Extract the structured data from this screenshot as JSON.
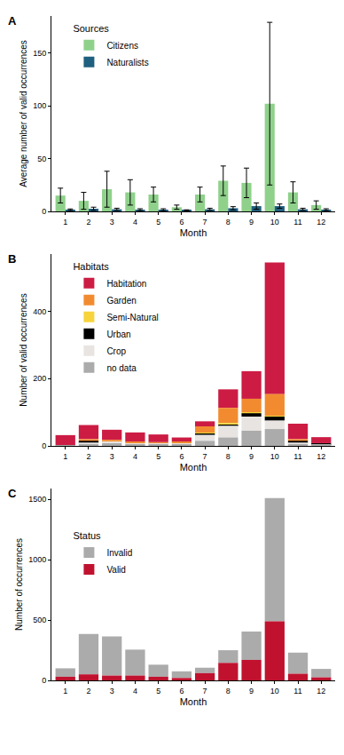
{
  "chart_data": [
    {
      "type": "bar",
      "title": "A",
      "xlabel": "Month",
      "ylabel": "Average number of valid occurrences",
      "x": [
        1,
        2,
        3,
        4,
        5,
        6,
        7,
        8,
        9,
        10,
        11,
        12
      ],
      "xlim": [
        0.4,
        12.6
      ],
      "xticks": [
        1,
        2,
        3,
        4,
        5,
        6,
        7,
        8,
        9,
        10,
        11,
        12
      ],
      "ylim": [
        0,
        185
      ],
      "yticks": [
        0,
        50,
        100,
        150
      ],
      "legend_title": "Sources",
      "legend": "top-left",
      "series": [
        {
          "name": "Citizens",
          "color": "#8fd18b",
          "values": [
            15,
            10,
            21,
            18,
            16,
            4,
            16,
            29,
            27,
            102,
            18,
            6
          ],
          "error": [
            7,
            8,
            17,
            12,
            7,
            2,
            7,
            14,
            14,
            77,
            10,
            4
          ]
        },
        {
          "name": "Naturalists",
          "color": "#1f5f7f",
          "values": [
            1.5,
            2.5,
            2,
            1.5,
            1.5,
            1,
            2,
            3,
            5,
            5,
            2,
            1.5
          ],
          "error": [
            0.8,
            1.5,
            1,
            1,
            1,
            0.5,
            1,
            1.5,
            3,
            2,
            1,
            1
          ]
        }
      ]
    },
    {
      "type": "bar",
      "title": "B",
      "xlabel": "Month",
      "ylabel": "Number of valid occurrences",
      "x": [
        1,
        2,
        3,
        4,
        5,
        6,
        7,
        8,
        9,
        10,
        11,
        12
      ],
      "xlim": [
        0.4,
        12.6
      ],
      "xticks": [
        1,
        2,
        3,
        4,
        5,
        6,
        7,
        8,
        9,
        10,
        11,
        12
      ],
      "ylim": [
        0,
        570
      ],
      "yticks": [
        0,
        200,
        400
      ],
      "stacked": true,
      "legend_title": "Habitats",
      "legend": "top-left",
      "series": [
        {
          "name": "Habitation",
          "color": "#cc1c44",
          "values": [
            30,
            42,
            30,
            27,
            23,
            12,
            15,
            55,
            82,
            391,
            46,
            18
          ]
        },
        {
          "name": "Garden",
          "color": "#f28b30",
          "values": [
            0,
            5,
            5,
            5,
            5,
            5,
            20,
            45,
            40,
            65,
            5,
            0
          ]
        },
        {
          "name": "Semi-Natural",
          "color": "#f7d43b",
          "values": [
            0,
            0,
            0,
            0,
            0,
            0,
            3,
            5,
            3,
            2,
            0,
            0
          ]
        },
        {
          "name": "Urban",
          "color": "#000000",
          "values": [
            0,
            5,
            0,
            0,
            0,
            0,
            2,
            3,
            10,
            12,
            5,
            3
          ]
        },
        {
          "name": "Crop",
          "color": "#e8e4e1",
          "values": [
            0,
            5,
            5,
            3,
            3,
            5,
            18,
            35,
            42,
            25,
            5,
            0
          ]
        },
        {
          "name": "no data",
          "color": "#ababab",
          "values": [
            2,
            5,
            8,
            5,
            3,
            3,
            15,
            25,
            45,
            50,
            5,
            5
          ]
        }
      ]
    },
    {
      "type": "bar",
      "title": "C",
      "xlabel": "Month",
      "ylabel": "Number of occurrences",
      "x": [
        1,
        2,
        3,
        4,
        5,
        6,
        7,
        8,
        9,
        10,
        11,
        12
      ],
      "xlim": [
        0.4,
        12.6
      ],
      "xticks": [
        1,
        2,
        3,
        4,
        5,
        6,
        7,
        8,
        9,
        10,
        11,
        12
      ],
      "ylim": [
        0,
        1590
      ],
      "yticks": [
        0,
        500,
        1000,
        1500
      ],
      "stacked": true,
      "legend_title": "Status",
      "legend": "left",
      "series": [
        {
          "name": "Invalid",
          "color": "#ababab",
          "values": [
            70,
            335,
            325,
            215,
            100,
            55,
            45,
            105,
            235,
            1020,
            175,
            70
          ]
        },
        {
          "name": "Valid",
          "color": "#c0122f",
          "values": [
            30,
            50,
            40,
            40,
            30,
            20,
            60,
            145,
            170,
            490,
            55,
            25
          ]
        }
      ]
    }
  ]
}
